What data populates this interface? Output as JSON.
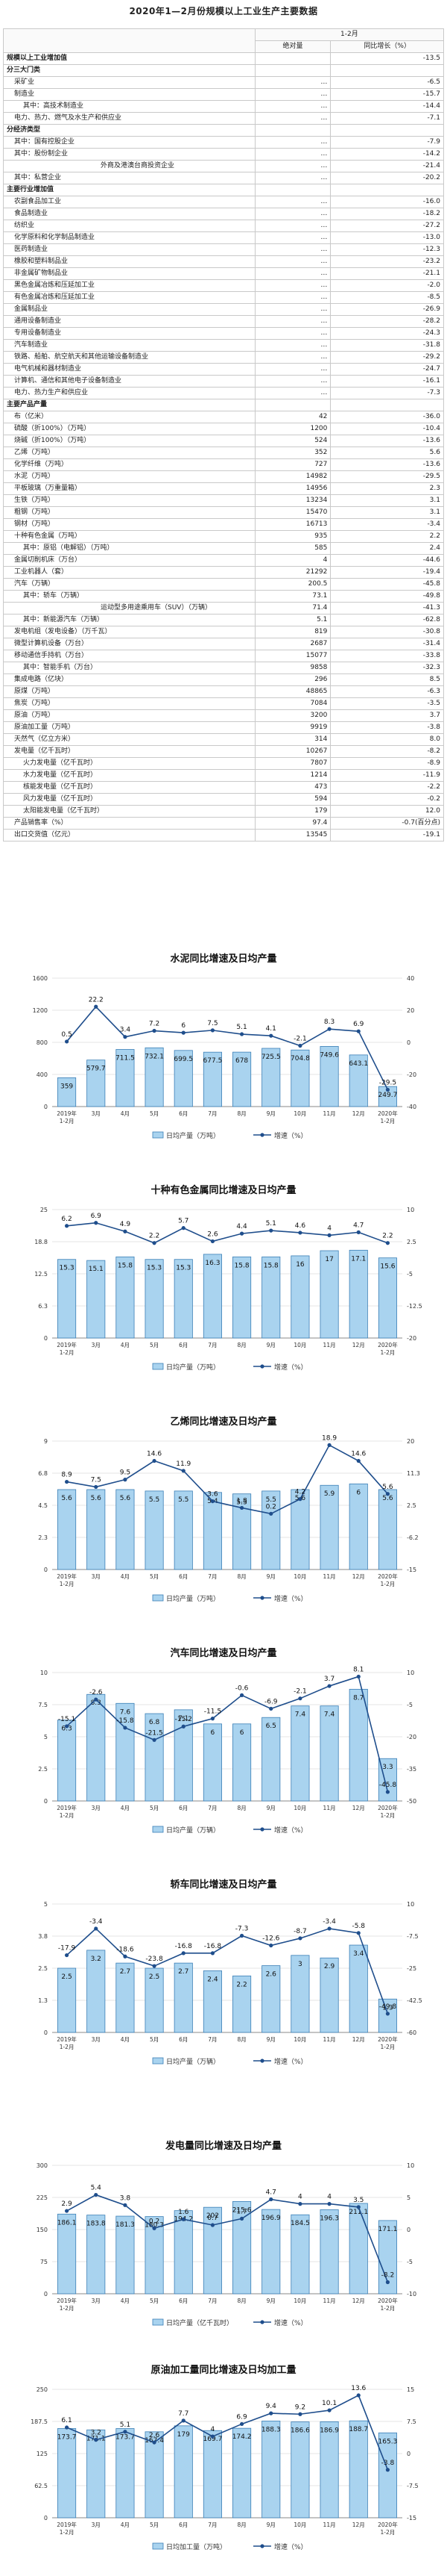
{
  "title": "2020年1—2月份规模以上工业生产主要数据",
  "table": {
    "period": "1-2月",
    "col_value": "绝对量",
    "col_growth": "同比增长（%）",
    "rows": [
      {
        "name": "规模以上工业增加值",
        "value": "",
        "growth": "-13.5",
        "style": "sec"
      },
      {
        "name": "分三大门类",
        "value": "",
        "growth": "",
        "style": "sec"
      },
      {
        "name": "采矿业",
        "value": "…",
        "growth": "-6.5",
        "style": "i1"
      },
      {
        "name": "制造业",
        "value": "…",
        "growth": "-15.7",
        "style": "i1"
      },
      {
        "name": "其中：高技术制造业",
        "value": "…",
        "growth": "-14.4",
        "style": "i2"
      },
      {
        "name": "电力、热力、燃气及水生产和供应业",
        "value": "…",
        "growth": "-7.1",
        "style": "i1"
      },
      {
        "name": "分经济类型",
        "value": "",
        "growth": "",
        "style": "sec"
      },
      {
        "name": "其中：国有控股企业",
        "value": "…",
        "growth": "-7.9",
        "style": "i1"
      },
      {
        "name": "其中：股份制企业",
        "value": "…",
        "growth": "-14.2",
        "style": "i1"
      },
      {
        "name": "外商及港澳台商投资企业",
        "value": "…",
        "growth": "-21.4",
        "style": "i3"
      },
      {
        "name": "其中：私营企业",
        "value": "…",
        "growth": "-20.2",
        "style": "i1"
      },
      {
        "name": "主要行业增加值",
        "value": "",
        "growth": "",
        "style": "sec"
      },
      {
        "name": "农副食品加工业",
        "value": "…",
        "growth": "-16.0",
        "style": "i1"
      },
      {
        "name": "食品制造业",
        "value": "…",
        "growth": "-18.2",
        "style": "i1"
      },
      {
        "name": "纺织业",
        "value": "…",
        "growth": "-27.2",
        "style": "i1"
      },
      {
        "name": "化学原料和化学制品制造业",
        "value": "…",
        "growth": "-13.0",
        "style": "i1"
      },
      {
        "name": "医药制造业",
        "value": "…",
        "growth": "-12.3",
        "style": "i1"
      },
      {
        "name": "橡胶和塑料制品业",
        "value": "…",
        "growth": "-23.2",
        "style": "i1"
      },
      {
        "name": "非金属矿物制品业",
        "value": "…",
        "growth": "-21.1",
        "style": "i1"
      },
      {
        "name": "黑色金属冶炼和压延加工业",
        "value": "…",
        "growth": "-2.0",
        "style": "i1"
      },
      {
        "name": "有色金属冶炼和压延加工业",
        "value": "…",
        "growth": "-8.5",
        "style": "i1"
      },
      {
        "name": "金属制品业",
        "value": "…",
        "growth": "-26.9",
        "style": "i1"
      },
      {
        "name": "通用设备制造业",
        "value": "…",
        "growth": "-28.2",
        "style": "i1"
      },
      {
        "name": "专用设备制造业",
        "value": "…",
        "growth": "-24.3",
        "style": "i1"
      },
      {
        "name": "汽车制造业",
        "value": "…",
        "growth": "-31.8",
        "style": "i1"
      },
      {
        "name": "铁路、船舶、航空航天和其他运输设备制造业",
        "value": "…",
        "growth": "-29.2",
        "style": "i1"
      },
      {
        "name": "电气机械和器材制造业",
        "value": "…",
        "growth": "-24.7",
        "style": "i1"
      },
      {
        "name": "计算机、通信和其他电子设备制造业",
        "value": "…",
        "growth": "-16.1",
        "style": "i1"
      },
      {
        "name": "电力、热力生产和供应业",
        "value": "…",
        "growth": "-7.3",
        "style": "i1"
      },
      {
        "name": "主要产品产量",
        "value": "",
        "growth": "",
        "style": "sec"
      },
      {
        "name": "布（亿米）",
        "value": "42",
        "growth": "-36.0",
        "style": "i1"
      },
      {
        "name": "硫酸（折100%）（万吨）",
        "value": "1200",
        "growth": "-10.4",
        "style": "i1"
      },
      {
        "name": "烧碱（折100%）（万吨）",
        "value": "524",
        "growth": "-13.6",
        "style": "i1"
      },
      {
        "name": "乙烯（万吨）",
        "value": "352",
        "growth": "5.6",
        "style": "i1"
      },
      {
        "name": "化学纤维（万吨）",
        "value": "727",
        "growth": "-13.6",
        "style": "i1"
      },
      {
        "name": "水泥（万吨）",
        "value": "14982",
        "growth": "-29.5",
        "style": "i1"
      },
      {
        "name": "平板玻璃（万重量箱）",
        "value": "14956",
        "growth": "2.3",
        "style": "i1"
      },
      {
        "name": "生铁（万吨）",
        "value": "13234",
        "growth": "3.1",
        "style": "i1"
      },
      {
        "name": "粗钢（万吨）",
        "value": "15470",
        "growth": "3.1",
        "style": "i1"
      },
      {
        "name": "钢材（万吨）",
        "value": "16713",
        "growth": "-3.4",
        "style": "i1"
      },
      {
        "name": "十种有色金属（万吨）",
        "value": "935",
        "growth": "2.2",
        "style": "i1"
      },
      {
        "name": "其中：原铝（电解铝）（万吨）",
        "value": "585",
        "growth": "2.4",
        "style": "i2"
      },
      {
        "name": "金属切削机床（万台）",
        "value": "4",
        "growth": "-44.6",
        "style": "i1"
      },
      {
        "name": "工业机器人（套）",
        "value": "21292",
        "growth": "-19.4",
        "style": "i1"
      },
      {
        "name": "汽车（万辆）",
        "value": "200.5",
        "growth": "-45.8",
        "style": "i1"
      },
      {
        "name": "其中：轿车（万辆）",
        "value": "73.1",
        "growth": "-49.8",
        "style": "i2"
      },
      {
        "name": "运动型多用途乘用车（SUV）（万辆）",
        "value": "71.4",
        "growth": "-41.3",
        "style": "i3"
      },
      {
        "name": "其中：新能源汽车（万辆）",
        "value": "5.1",
        "growth": "-62.8",
        "style": "i2"
      },
      {
        "name": "发电机组（发电设备）（万千瓦）",
        "value": "819",
        "growth": "-30.8",
        "style": "i1"
      },
      {
        "name": "微型计算机设备（万台）",
        "value": "2687",
        "growth": "-31.4",
        "style": "i1"
      },
      {
        "name": "移动通信手持机（万台）",
        "value": "15077",
        "growth": "-33.8",
        "style": "i1"
      },
      {
        "name": "其中：智能手机（万台）",
        "value": "9858",
        "growth": "-32.3",
        "style": "i2"
      },
      {
        "name": "集成电路（亿块）",
        "value": "296",
        "growth": "8.5",
        "style": "i1"
      },
      {
        "name": "原煤（万吨）",
        "value": "48865",
        "growth": "-6.3",
        "style": "i1"
      },
      {
        "name": "焦炭（万吨）",
        "value": "7084",
        "growth": "-3.5",
        "style": "i1"
      },
      {
        "name": "原油（万吨）",
        "value": "3200",
        "growth": "3.7",
        "style": "i1"
      },
      {
        "name": "原油加工量（万吨）",
        "value": "9919",
        "growth": "-3.8",
        "style": "i1"
      },
      {
        "name": "天然气（亿立方米）",
        "value": "314",
        "growth": "8.0",
        "style": "i1"
      },
      {
        "name": "发电量（亿千瓦时）",
        "value": "10267",
        "growth": "-8.2",
        "style": "i1"
      },
      {
        "name": "火力发电量（亿千瓦时）",
        "value": "7807",
        "growth": "-8.9",
        "style": "i2"
      },
      {
        "name": "水力发电量（亿千瓦时）",
        "value": "1214",
        "growth": "-11.9",
        "style": "i2"
      },
      {
        "name": "核能发电量（亿千瓦时）",
        "value": "473",
        "growth": "-2.2",
        "style": "i2"
      },
      {
        "name": "风力发电量（亿千瓦时）",
        "value": "594",
        "growth": "-0.2",
        "style": "i2"
      },
      {
        "name": "太阳能发电量（亿千瓦时）",
        "value": "179",
        "growth": "12.0",
        "style": "i2"
      },
      {
        "name": "产品销售率（%）",
        "value": "97.4",
        "growth": "-0.7(百分点)",
        "style": "i1"
      },
      {
        "name": "出口交货值（亿元）",
        "value": "13545",
        "growth": "-19.1",
        "style": "i1"
      }
    ]
  },
  "colors": {
    "bar": "#a9d3ef",
    "bar_stroke": "#3b7fb6",
    "line": "#1f4e8c"
  },
  "chart_data": [
    {
      "type": "bar",
      "title": "水泥同比增速及日均产量",
      "categories": [
        "2019年\n1-2月",
        "3月",
        "4月",
        "5月",
        "6月",
        "7月",
        "8月",
        "9月",
        "10月",
        "11月",
        "12月",
        "2020年\n1-2月"
      ],
      "series": [
        {
          "name": "日均产量（万吨）",
          "values": [
            359.0,
            579.7,
            711.5,
            732.1,
            699.5,
            677.5,
            678.0,
            725.5,
            704.8,
            749.6,
            643.1,
            249.7
          ]
        },
        {
          "name": "增速（%）",
          "values": [
            0.5,
            22.2,
            3.4,
            7.2,
            6.0,
            7.5,
            5.1,
            4.1,
            -2.1,
            8.3,
            6.9,
            -29.5
          ]
        }
      ],
      "ylim_left": [
        0,
        1600
      ],
      "ylim_right": [
        -40,
        40
      ]
    },
    {
      "type": "bar",
      "title": "十种有色金属同比增速及日均产量",
      "categories": [
        "2019年\n1-2月",
        "3月",
        "4月",
        "5月",
        "6月",
        "7月",
        "8月",
        "9月",
        "10月",
        "11月",
        "12月",
        "2020年\n1-2月"
      ],
      "series": [
        {
          "name": "日均产量（万吨）",
          "values": [
            15.3,
            15.1,
            15.8,
            15.3,
            15.3,
            16.3,
            15.8,
            15.8,
            16.0,
            17.0,
            17.1,
            15.6
          ]
        },
        {
          "name": "增速（%）",
          "values": [
            6.2,
            6.9,
            4.9,
            2.2,
            5.7,
            2.6,
            4.4,
            5.1,
            4.6,
            4.0,
            4.7,
            2.2
          ]
        }
      ],
      "ylim_left": [
        0,
        25
      ],
      "ylim_right": [
        -20,
        10
      ]
    },
    {
      "type": "bar",
      "title": "乙烯同比增速及日均产量",
      "categories": [
        "2019年\n1-2月",
        "3月",
        "4月",
        "5月",
        "6月",
        "7月",
        "8月",
        "9月",
        "10月",
        "11月",
        "12月",
        "2020年\n1-2月"
      ],
      "series": [
        {
          "name": "日均产量（万吨）",
          "values": [
            5.6,
            5.6,
            5.6,
            5.5,
            5.5,
            5.4,
            5.3,
            5.5,
            5.6,
            5.9,
            6.0,
            5.6
          ]
        },
        {
          "name": "增速（%）",
          "values": [
            8.9,
            7.5,
            9.5,
            14.6,
            11.9,
            3.6,
            1.8,
            0.2,
            4.2,
            18.9,
            14.6,
            5.6
          ]
        }
      ],
      "ylim_left": [
        0,
        9
      ],
      "ylim_right": [
        -15,
        20
      ]
    },
    {
      "type": "bar",
      "title": "汽车同比增速及日均产量",
      "categories": [
        "2019年\n1-2月",
        "3月",
        "4月",
        "5月",
        "6月",
        "7月",
        "8月",
        "9月",
        "10月",
        "11月",
        "12月",
        "2020年\n1-2月"
      ],
      "series": [
        {
          "name": "日均产量（万辆）",
          "values": [
            6.3,
            8.3,
            7.6,
            6.8,
            7.1,
            6.0,
            6.0,
            6.5,
            7.4,
            7.4,
            8.7,
            3.3
          ]
        },
        {
          "name": "增速（%）",
          "values": [
            -15.1,
            -2.6,
            -15.8,
            -21.5,
            -15.2,
            -11.5,
            -0.6,
            -6.9,
            -2.1,
            3.7,
            8.1,
            -45.8
          ]
        }
      ],
      "ylim_left": [
        0,
        10
      ],
      "ylim_right": [
        -50,
        10
      ]
    },
    {
      "type": "bar",
      "title": "轿车同比增速及日均产量",
      "categories": [
        "2019年\n1-2月",
        "3月",
        "4月",
        "5月",
        "6月",
        "7月",
        "8月",
        "9月",
        "10月",
        "11月",
        "12月",
        "2020年\n1-2月"
      ],
      "series": [
        {
          "name": "日均产量（万辆）",
          "values": [
            2.5,
            3.2,
            2.7,
            2.5,
            2.7,
            2.4,
            2.2,
            2.6,
            3.0,
            2.9,
            3.4,
            1.3
          ]
        },
        {
          "name": "增速（%）",
          "values": [
            -17.9,
            -3.4,
            -18.6,
            -23.8,
            -16.8,
            -16.8,
            -7.3,
            -12.6,
            -8.7,
            -3.4,
            -5.8,
            -49.8
          ]
        }
      ],
      "ylim_left": [
        0,
        5
      ],
      "ylim_right": [
        -60,
        10
      ]
    },
    {
      "type": "bar",
      "title": "发电量同比增速及日均产量",
      "categories": [
        "2019年\n1-2月",
        "3月",
        "4月",
        "5月",
        "6月",
        "7月",
        "8月",
        "9月",
        "10月",
        "11月",
        "12月",
        "2020年\n1-2月"
      ],
      "series": [
        {
          "name": "日均产量（亿千瓦时）",
          "values": [
            186.1,
            183.8,
            181.3,
            180.3,
            194.2,
            202.0,
            215.6,
            196.9,
            184.5,
            196.3,
            211.1,
            171.1
          ]
        },
        {
          "name": "增速（%）",
          "values": [
            2.9,
            5.4,
            3.8,
            0.2,
            1.6,
            0.7,
            1.7,
            4.7,
            4.0,
            4.0,
            3.5,
            -8.2
          ]
        }
      ],
      "ylim_left": [
        0,
        300
      ],
      "ylim_right": [
        -10,
        10
      ]
    },
    {
      "type": "bar",
      "title": "原油加工量同比增速及日均加工量",
      "categories": [
        "2019年\n1-2月",
        "3月",
        "4月",
        "5月",
        "6月",
        "7月",
        "8月",
        "9月",
        "10月",
        "11月",
        "12月",
        "2020年\n1-2月"
      ],
      "series": [
        {
          "name": "日均加工量（万吨）",
          "values": [
            173.7,
            171.1,
            173.7,
            167.4,
            179.0,
            169.7,
            174.2,
            188.3,
            186.6,
            186.9,
            188.7,
            165.3
          ]
        },
        {
          "name": "增速（%）",
          "values": [
            6.1,
            3.2,
            5.1,
            2.6,
            7.7,
            4.0,
            6.9,
            9.4,
            9.2,
            10.1,
            13.6,
            -3.8
          ]
        }
      ],
      "ylim_left": [
        0,
        250
      ],
      "ylim_right": [
        -15,
        15
      ]
    }
  ]
}
